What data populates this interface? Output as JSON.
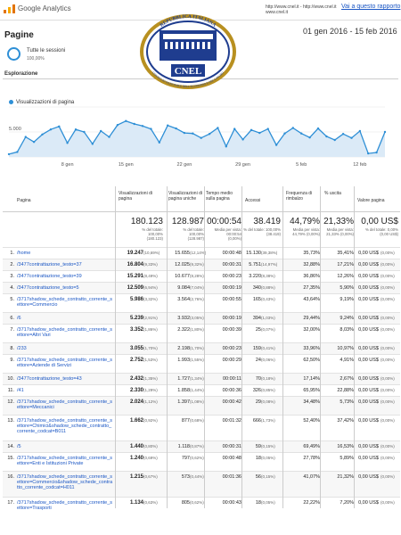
{
  "header": {
    "app_title": "Google Analytics",
    "urls_line1": "http://www.cnel.it - http://www.cnel.it",
    "urls_line2": "www.cnel.it",
    "report_link": "Vai a questo rapporto"
  },
  "page": {
    "title": "Pagine",
    "date_range": "01 gen 2016 - 15 feb 2016"
  },
  "segment": {
    "name": "Tutte le sessioni",
    "pct": "100,00%"
  },
  "explore_tab": "Esplorazione",
  "logo": {
    "top_text": "REPUBBLICA ITALIANA",
    "bottom_text": "CONSIGLIO NAZIONALE DELL'ECONOMIA E DEL LAVORO",
    "acronym": "CNEL"
  },
  "chart_data": {
    "type": "line",
    "series": [
      {
        "name": "Visualizzazioni di pagina",
        "values": [
          550,
          1000,
          4000,
          3000,
          4500,
          5500,
          6100,
          2800,
          5500,
          5000,
          2600,
          5200,
          4000,
          6400,
          7200,
          6600,
          6200,
          5600,
          2900,
          6300,
          5700,
          4800,
          4700,
          3800,
          4600,
          5800,
          2100,
          5600,
          3500,
          5400,
          4800,
          5600,
          2400,
          4700,
          5800,
          4700,
          3900,
          5700,
          4100,
          3400,
          4600,
          3800,
          5200,
          700,
          900,
          5000
        ]
      }
    ],
    "x": [
      "1 gen",
      "2 gen",
      "3 gen",
      "4 gen",
      "5 gen",
      "6 gen",
      "7 gen",
      "8 gen",
      "9 gen",
      "10 gen",
      "11 gen",
      "12 gen",
      "13 gen",
      "14 gen",
      "15 gen",
      "16 gen",
      "17 gen",
      "18 gen",
      "19 gen",
      "20 gen",
      "21 gen",
      "22 gen",
      "23 gen",
      "24 gen",
      "25 gen",
      "26 gen",
      "27 gen",
      "28 gen",
      "29 gen",
      "30 gen",
      "31 gen",
      "1 feb",
      "2 feb",
      "3 feb",
      "4 feb",
      "5 feb",
      "6 feb",
      "7 feb",
      "8 feb",
      "9 feb",
      "10 feb",
      "11 feb",
      "12 feb",
      "13 feb",
      "14 feb",
      "15 feb"
    ],
    "x_ticks": [
      "8 gen",
      "15 gen",
      "22 gen",
      "29 gen",
      "5 feb",
      "12 feb"
    ],
    "y_ticks": [
      "10.000",
      "5.000"
    ],
    "ylim": [
      0,
      10000
    ]
  },
  "table": {
    "headers": {
      "page": "Pagina",
      "views": "Visualizzazioni di pagina",
      "unique": "Visualizzazioni di pagina uniche",
      "avg_time": "Tempo medio sulla pagina",
      "entries": "Accessi",
      "bounce": "Frequenza di rimbalzo",
      "exit": "% uscita",
      "value": "Valore pagina"
    },
    "totals": {
      "views": "180.123",
      "views_sub": "% del totale: 100,00% (180.123)",
      "unique": "128.987",
      "unique_sub": "% del totale: 100,00% (128.987)",
      "avg_time": "00:00:54",
      "avg_time_sub": "Media per vista: 00:00:54 (0,00%)",
      "entries": "38.419",
      "entries_sub": "% del totale: 100,00% (38.419)",
      "bounce": "44,79%",
      "bounce_sub": "Media per vista: 44,79% (0,00%)",
      "exit": "21,33%",
      "exit_sub": "Media per vista: 21,33% (0,00%)",
      "value": "0,00 US$",
      "value_sub": "% del totale: 0,00% (0,00 US$)"
    },
    "rows": [
      {
        "n": "1.",
        "page": "/home",
        "views": "19.247",
        "vp": "(10,69%)",
        "unique": "15.655",
        "up": "(12,14%)",
        "time": "00:00:48",
        "entries": "15.130",
        "ep": "(39,38%)",
        "bounce": "35,73%",
        "exit": "35,41%",
        "value": "0,00 US$",
        "valp": "(0,00%)"
      },
      {
        "n": "2.",
        "page": "/3477contrattazione_testo=37",
        "views": "16.804",
        "vp": "(9,33%)",
        "unique": "12.025",
        "up": "(9,32%)",
        "time": "00:00:31",
        "entries": "5.751",
        "ep": "(14,97%)",
        "bounce": "32,88%",
        "exit": "17,21%",
        "value": "0,00 US$",
        "valp": "(0,00%)"
      },
      {
        "n": "3.",
        "page": "/3477contrattazione_testo=39",
        "views": "15.291",
        "vp": "(8,49%)",
        "unique": "10.677",
        "up": "(8,28%)",
        "time": "00:00:23",
        "entries": "3.220",
        "ep": "(8,38%)",
        "bounce": "36,86%",
        "exit": "12,26%",
        "value": "0,00 US$",
        "valp": "(0,00%)"
      },
      {
        "n": "4.",
        "page": "/3477contrattazione_testo=5",
        "views": "12.509",
        "vp": "(6,94%)",
        "unique": "9.084",
        "up": "(7,04%)",
        "time": "00:00:19",
        "entries": "340",
        "ep": "(0,88%)",
        "bounce": "27,35%",
        "exit": "5,90%",
        "value": "0,00 US$",
        "valp": "(0,00%)"
      },
      {
        "n": "5.",
        "page": "/3717shadow_schede_contratto_corrente_settore=Commercio",
        "views": "5.986",
        "vp": "(3,32%)",
        "unique": "3.564",
        "up": "(2,76%)",
        "time": "00:00:55",
        "entries": "165",
        "ep": "(0,43%)",
        "bounce": "43,64%",
        "exit": "9,19%",
        "value": "0,00 US$",
        "valp": "(0,00%)"
      },
      {
        "n": "6.",
        "page": "/6",
        "views": "5.239",
        "vp": "(2,91%)",
        "unique": "3.932",
        "up": "(3,05%)",
        "time": "00:00:19",
        "entries": "394",
        "ep": "(1,03%)",
        "bounce": "29,44%",
        "exit": "9,24%",
        "value": "0,00 US$",
        "valp": "(0,00%)"
      },
      {
        "n": "7.",
        "page": "/3717shadow_schede_contratto_corrente_settore=Altri Vari",
        "views": "3.352",
        "vp": "(1,86%)",
        "unique": "2.322",
        "up": "(1,80%)",
        "time": "00:00:39",
        "entries": "25",
        "ep": "(0,07%)",
        "bounce": "32,00%",
        "exit": "8,03%",
        "value": "0,00 US$",
        "valp": "(0,00%)"
      },
      {
        "n": "8.",
        "page": "/233",
        "views": "3.055",
        "vp": "(1,70%)",
        "unique": "2.198",
        "up": "(1,70%)",
        "time": "00:00:23",
        "entries": "159",
        "ep": "(0,41%)",
        "bounce": "33,96%",
        "exit": "10,97%",
        "value": "0,00 US$",
        "valp": "(0,00%)"
      },
      {
        "n": "9.",
        "page": "/3717shadow_schede_contratto_corrente_settore=Aziende di Servizi",
        "views": "2.752",
        "vp": "(1,53%)",
        "unique": "1.993",
        "up": "(1,55%)",
        "time": "00:00:29",
        "entries": "24",
        "ep": "(0,06%)",
        "bounce": "62,50%",
        "exit": "4,91%",
        "value": "0,00 US$",
        "valp": "(0,00%)"
      },
      {
        "n": "10.",
        "page": "/3477contrattazione_testo=43",
        "views": "2.432",
        "vp": "(1,35%)",
        "unique": "1.727",
        "up": "(1,34%)",
        "time": "00:00:11",
        "entries": "70",
        "ep": "(0,18%)",
        "bounce": "17,14%",
        "exit": "2,67%",
        "value": "0,00 US$",
        "valp": "(0,00%)"
      },
      {
        "n": "11.",
        "page": "/41",
        "views": "2.330",
        "vp": "(1,29%)",
        "unique": "1.858",
        "up": "(1,44%)",
        "time": "00:00:36",
        "entries": "326",
        "ep": "(0,85%)",
        "bounce": "65,95%",
        "exit": "22,88%",
        "value": "0,00 US$",
        "valp": "(0,00%)"
      },
      {
        "n": "12.",
        "page": "/3717shadow_schede_contratto_corrente_settore=Meccanici",
        "views": "2.024",
        "vp": "(1,12%)",
        "unique": "1.397",
        "up": "(1,08%)",
        "time": "00:00:42",
        "entries": "29",
        "ep": "(0,08%)",
        "bounce": "34,48%",
        "exit": "5,73%",
        "value": "0,00 US$",
        "valp": "(0,00%)"
      },
      {
        "n": "13.",
        "page": "/3717shadow_schede_contratto_corrente_settore=Chimici&shadow_schede_contratto_corrente_codcat=B011",
        "views": "1.662",
        "vp": "(0,92%)",
        "unique": "877",
        "up": "(0,68%)",
        "time": "00:01:32",
        "entries": "666",
        "ep": "(1,73%)",
        "bounce": "52,40%",
        "exit": "37,42%",
        "value": "0,00 US$",
        "valp": "(0,00%)"
      },
      {
        "n": "14.",
        "page": "/5",
        "views": "1.440",
        "vp": "(0,80%)",
        "unique": "1.118",
        "up": "(0,87%)",
        "time": "00:00:31",
        "entries": "59",
        "ep": "(0,15%)",
        "bounce": "69,49%",
        "exit": "16,53%",
        "value": "0,00 US$",
        "valp": "(0,00%)"
      },
      {
        "n": "15.",
        "page": "/3717shadow_schede_contratto_corrente_settore=Enti e Istituzioni Private",
        "views": "1.240",
        "vp": "(0,69%)",
        "unique": "797",
        "up": "(0,62%)",
        "time": "00:00:48",
        "entries": "18",
        "ep": "(0,05%)",
        "bounce": "27,78%",
        "exit": "5,89%",
        "value": "0,00 US$",
        "valp": "(0,00%)"
      },
      {
        "n": "16.",
        "page": "/3717shadow_schede_contratto_corrente_settore=Commercio&shadow_schede_contratto_corrente_codcat=H011",
        "views": "1.215",
        "vp": "(0,67%)",
        "unique": "573",
        "up": "(0,44%)",
        "time": "00:01:36",
        "entries": "56",
        "ep": "(0,15%)",
        "bounce": "41,07%",
        "exit": "21,32%",
        "value": "0,00 US$",
        "valp": "(0,00%)"
      },
      {
        "n": "17.",
        "page": "/3717shadow_schede_contratto_corrente_settore=Trasporti",
        "views": "1.134",
        "vp": "(0,63%)",
        "unique": "805",
        "up": "(0,62%)",
        "time": "00:00:43",
        "entries": "18",
        "ep": "(0,05%)",
        "bounce": "22,22%",
        "exit": "7,20%",
        "value": "0,00 US$",
        "valp": "(0,00%)"
      }
    ]
  }
}
